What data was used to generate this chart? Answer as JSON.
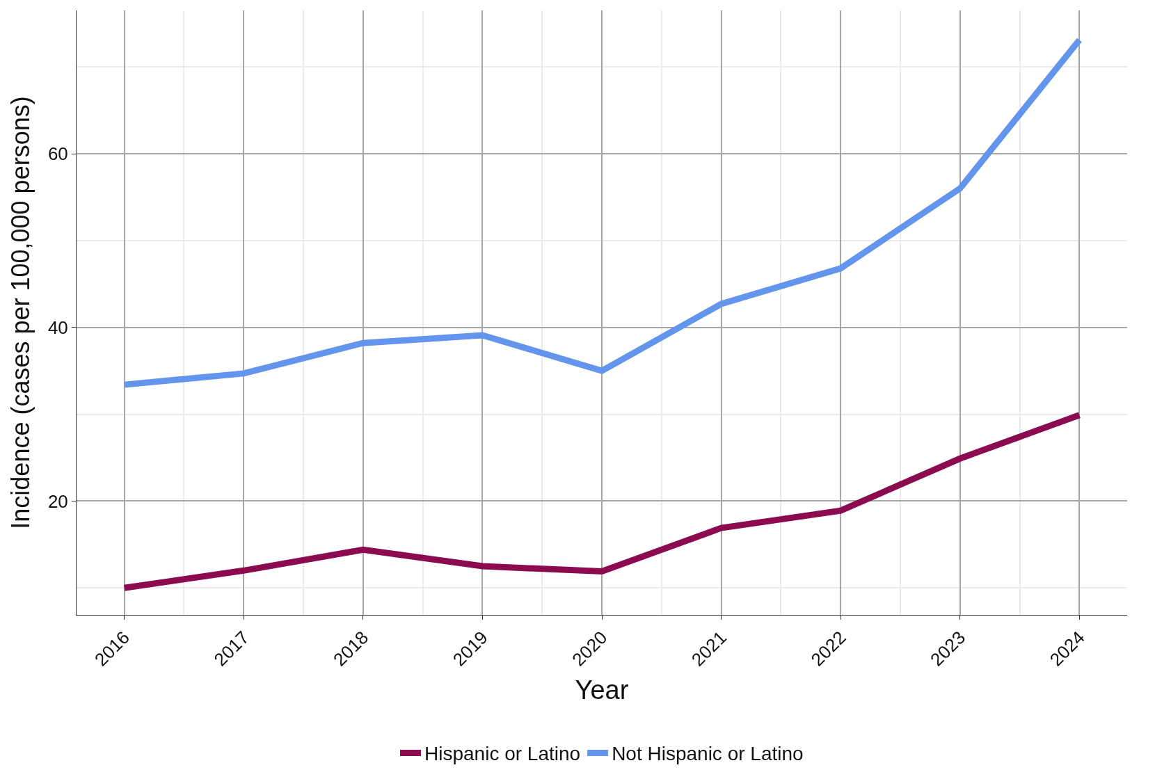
{
  "chart_data": {
    "type": "line",
    "xlabel": "Year",
    "ylabel": "Incidence (cases per 100,000 persons)",
    "x": [
      2016,
      2017,
      2018,
      2019,
      2020,
      2021,
      2022,
      2023,
      2024
    ],
    "series": [
      {
        "name": "Hispanic or Latino",
        "color": "#8b0a50",
        "values": [
          10.0,
          12.0,
          14.4,
          12.5,
          11.9,
          16.9,
          18.9,
          24.9,
          29.9
        ]
      },
      {
        "name": "Not Hispanic or Latino",
        "color": "#6495ed",
        "values": [
          33.4,
          34.7,
          38.2,
          39.1,
          35.0,
          42.7,
          46.8,
          56.0,
          73.1
        ]
      }
    ],
    "xlim": [
      2015.6,
      2024.4
    ],
    "ylim": [
      6.9,
      76.5
    ],
    "xticks": [
      2016,
      2017,
      2018,
      2019,
      2020,
      2021,
      2022,
      2023,
      2024
    ],
    "yticks": [
      20,
      40,
      60
    ],
    "grid": true,
    "legend": "bottom",
    "marker": "none",
    "line_style": "solid"
  }
}
